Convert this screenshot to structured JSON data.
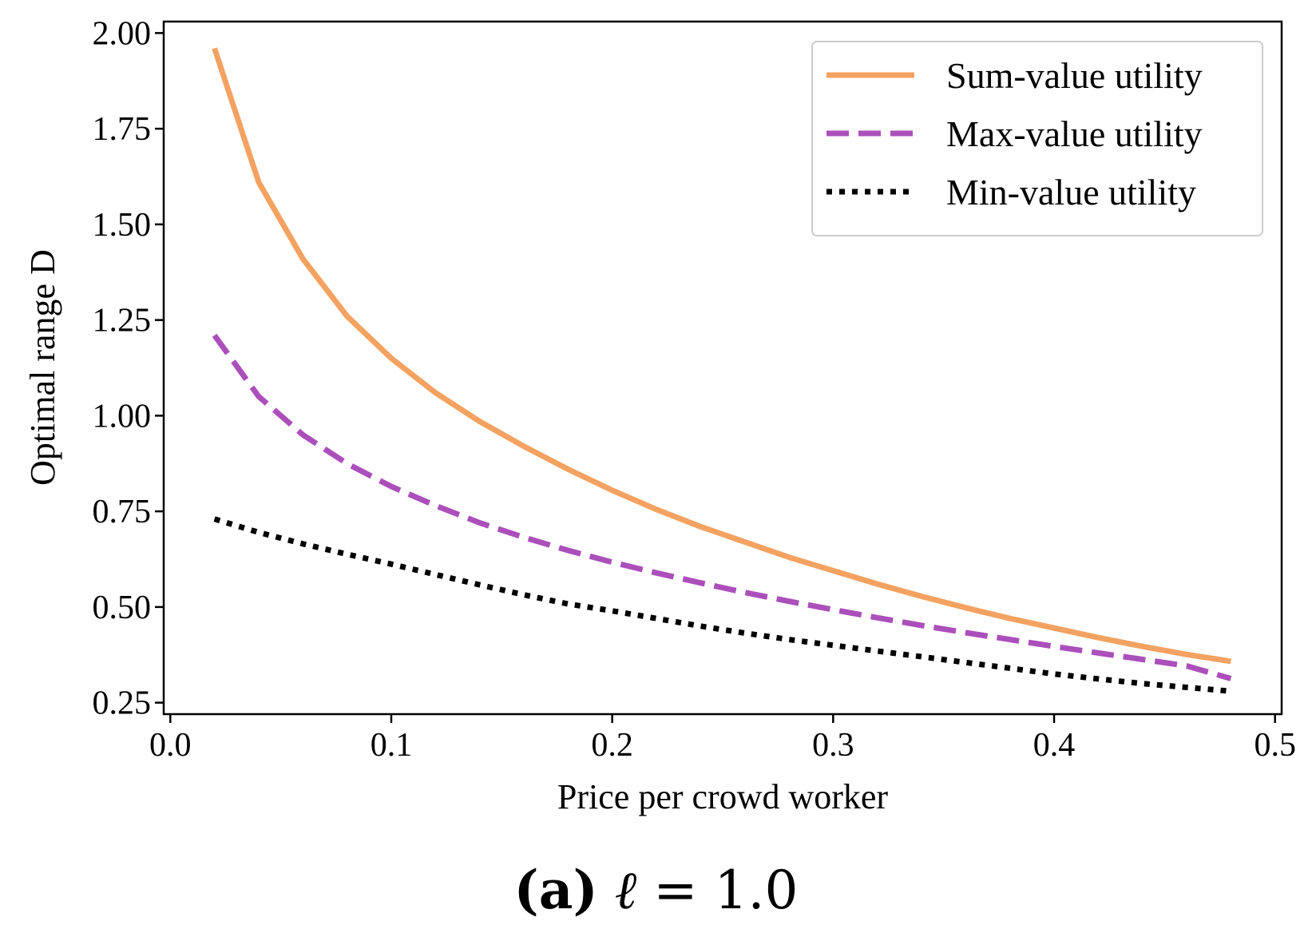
{
  "chart_data": {
    "type": "line",
    "xlabel": "Price per crowd worker",
    "ylabel": "Optimal range D",
    "xlim": [
      -0.003,
      0.503
    ],
    "ylim": [
      0.22,
      2.03
    ],
    "x_ticks": [
      "0.0",
      "0.1",
      "0.2",
      "0.3",
      "0.4",
      "0.5"
    ],
    "x_tick_values": [
      0.0,
      0.1,
      0.2,
      0.3,
      0.4,
      0.5
    ],
    "y_ticks": [
      "0.25",
      "0.50",
      "0.75",
      "1.00",
      "1.25",
      "1.50",
      "1.75",
      "2.00"
    ],
    "y_tick_values": [
      0.25,
      0.5,
      0.75,
      1.0,
      1.25,
      1.5,
      1.75,
      2.0
    ],
    "legend_position": "top-right",
    "x": [
      0.02,
      0.04,
      0.06,
      0.08,
      0.1,
      0.12,
      0.14,
      0.16,
      0.18,
      0.2,
      0.22,
      0.24,
      0.26,
      0.28,
      0.3,
      0.32,
      0.34,
      0.36,
      0.38,
      0.4,
      0.42,
      0.44,
      0.46,
      0.48
    ],
    "series": [
      {
        "name": "Sum-value utility",
        "color": "#f4a261",
        "style": "solid",
        "values": [
          1.96,
          1.61,
          1.41,
          1.26,
          1.15,
          1.06,
          0.985,
          0.92,
          0.86,
          0.805,
          0.755,
          0.71,
          0.67,
          0.63,
          0.595,
          0.56,
          0.528,
          0.498,
          0.47,
          0.445,
          0.42,
          0.397,
          0.376,
          0.358
        ]
      },
      {
        "name": "Max-value utility",
        "color": "#ab4fbb",
        "style": "dashed",
        "values": [
          1.21,
          1.05,
          0.95,
          0.875,
          0.815,
          0.765,
          0.72,
          0.682,
          0.648,
          0.617,
          0.589,
          0.563,
          0.538,
          0.515,
          0.493,
          0.472,
          0.452,
          0.433,
          0.415,
          0.397,
          0.38,
          0.363,
          0.346,
          0.313
        ]
      },
      {
        "name": "Min-value utility",
        "color": "#000000",
        "style": "dotted",
        "values": [
          0.73,
          0.695,
          0.665,
          0.638,
          0.612,
          0.585,
          0.558,
          0.532,
          0.508,
          0.49,
          0.47,
          0.45,
          0.432,
          0.415,
          0.4,
          0.385,
          0.37,
          0.355,
          0.34,
          0.325,
          0.312,
          0.3,
          0.29,
          0.28
        ]
      }
    ]
  },
  "caption": {
    "label": "a",
    "equation_lhs": "ℓ",
    "equation_op": "=",
    "equation_rhs": "1.0"
  }
}
